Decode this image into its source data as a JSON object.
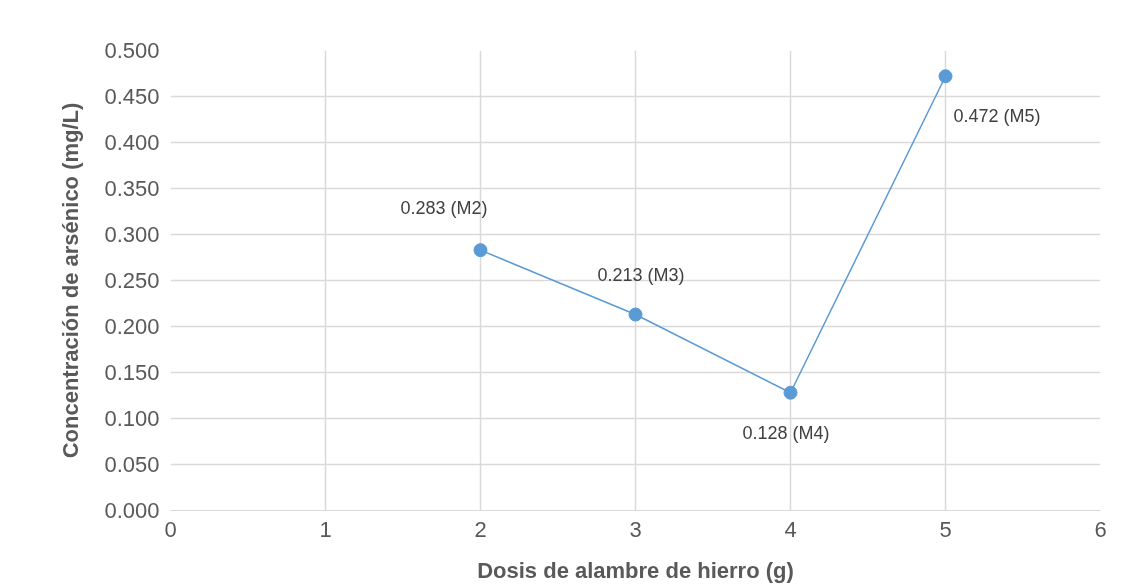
{
  "chart_data": {
    "type": "line",
    "xlabel": "Dosis de alambre de hierro (g)",
    "ylabel": "Concentración de arsénico (mg/L)",
    "x": [
      2,
      3,
      4,
      5
    ],
    "series": [
      {
        "color": "#5b9bd5",
        "values": [
          0.283,
          0.213,
          0.128,
          0.472
        ],
        "value_labels": [
          "0.283 (M2)",
          "0.213 (M3)",
          "0.128 (M4)",
          "0.472 (M5)"
        ]
      }
    ],
    "xlim": [
      0,
      6
    ],
    "xticks": [
      0,
      1,
      2,
      3,
      4,
      5,
      6
    ],
    "ylim": [
      0,
      0.5
    ],
    "yticks": [
      {
        "value": 0,
        "label": "0.000"
      },
      {
        "value": 0.05,
        "label": "0.050"
      },
      {
        "value": 0.1,
        "label": "0.100"
      },
      {
        "value": 0.15,
        "label": "0.150"
      },
      {
        "value": 0.2,
        "label": "0.200"
      },
      {
        "value": 0.25,
        "label": "0.250"
      },
      {
        "value": 0.3,
        "label": "0.300"
      },
      {
        "value": 0.35,
        "label": "0.350"
      },
      {
        "value": 0.4,
        "label": "0.400"
      },
      {
        "value": 0.45,
        "label": "0.450"
      },
      {
        "value": 0.5,
        "label": "0.500"
      }
    ],
    "grid": true,
    "marker": "circle",
    "line_style": "solid"
  }
}
